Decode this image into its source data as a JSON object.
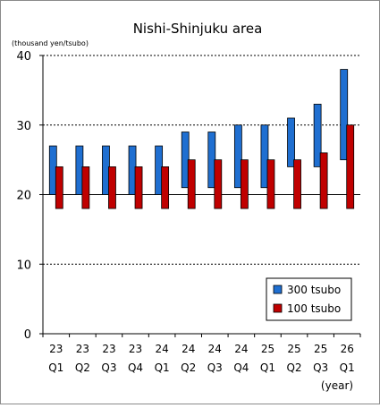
{
  "chart_data": {
    "type": "bar",
    "title": "Nishi-Shinjuku area",
    "unit_label": "(thousand yen/tsubo)",
    "x_unit_label": "(year)",
    "ylim": [
      0,
      40
    ],
    "yticks": [
      0,
      10,
      20,
      30,
      40
    ],
    "grid": "horizontal dotted at 10, 30, 40; solid at 20",
    "legend_placement": "bottom-right",
    "categories": [
      [
        "23",
        "Q1"
      ],
      [
        "23",
        "Q2"
      ],
      [
        "23",
        "Q3"
      ],
      [
        "23",
        "Q4"
      ],
      [
        "24",
        "Q1"
      ],
      [
        "24",
        "Q2"
      ],
      [
        "24",
        "Q3"
      ],
      [
        "24",
        "Q4"
      ],
      [
        "25",
        "Q1"
      ],
      [
        "25",
        "Q2"
      ],
      [
        "25",
        "Q3"
      ],
      [
        "26",
        "Q1"
      ]
    ],
    "series": [
      {
        "name": "300 tsubo",
        "color": "#1f6fd1",
        "ranges": [
          [
            20,
            27
          ],
          [
            20,
            27
          ],
          [
            20,
            27
          ],
          [
            20,
            27
          ],
          [
            20,
            27
          ],
          [
            21,
            29
          ],
          [
            21,
            29
          ],
          [
            21,
            30
          ],
          [
            21,
            30
          ],
          [
            24,
            31
          ],
          [
            24,
            33
          ],
          [
            25,
            38
          ]
        ]
      },
      {
        "name": "100 tsubo",
        "color": "#c00000",
        "ranges": [
          [
            18,
            24
          ],
          [
            18,
            24
          ],
          [
            18,
            24
          ],
          [
            18,
            24
          ],
          [
            18,
            24
          ],
          [
            18,
            25
          ],
          [
            18,
            25
          ],
          [
            18,
            25
          ],
          [
            18,
            25
          ],
          [
            18,
            25
          ],
          [
            18,
            26
          ],
          [
            18,
            30
          ]
        ]
      }
    ]
  }
}
